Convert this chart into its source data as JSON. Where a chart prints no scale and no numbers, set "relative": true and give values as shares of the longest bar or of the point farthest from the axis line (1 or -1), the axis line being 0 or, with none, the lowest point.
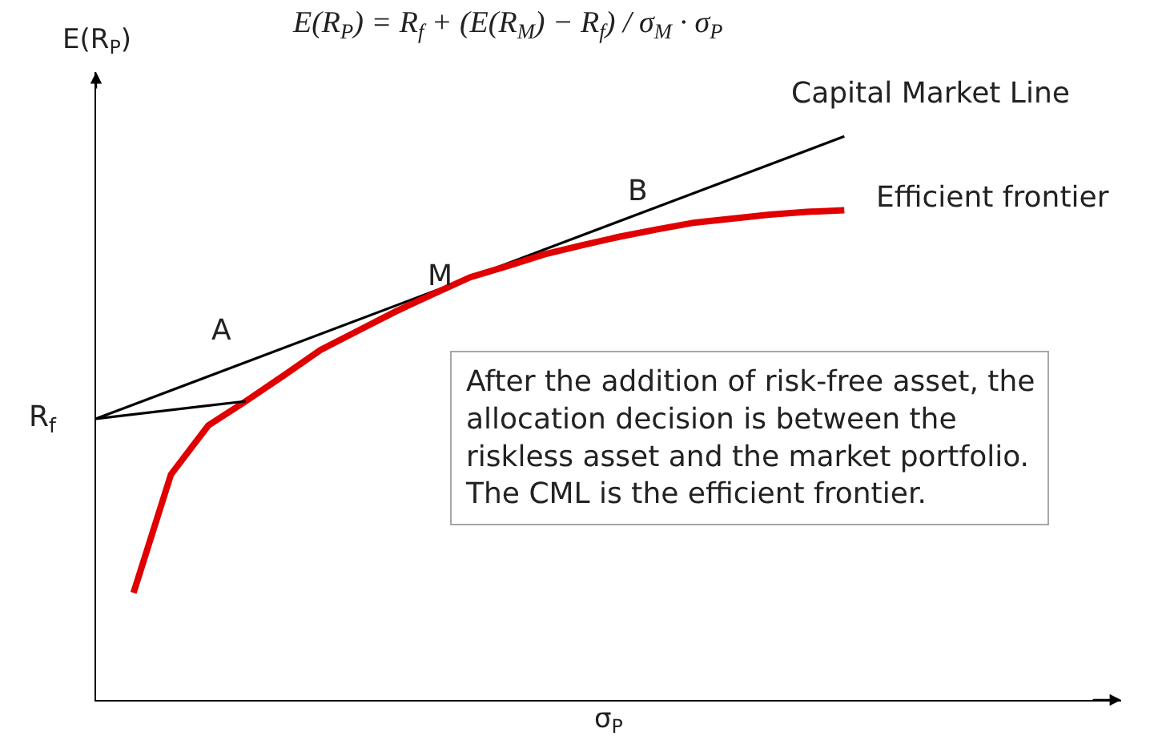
{
  "chart_data": {
    "type": "line",
    "relative": true,
    "xlabel": "σ$_{P}$",
    "ylabel": "E(R$_{P}$)",
    "legend": false,
    "grid": false,
    "marker": "none",
    "line_style": "solid",
    "categories": [
      null,
      null,
      null,
      null,
      null,
      null,
      null,
      null,
      null,
      null,
      null,
      null,
      null,
      null,
      null,
      null,
      null,
      null,
      null,
      null,
      null
    ],
    "series": [
      {
        "name": "Capital Market Line",
        "color": "#000000",
        "values": [
          0.499,
          null,
          null,
          null,
          null,
          null,
          null,
          null,
          null,
          null,
          null,
          null,
          null,
          null,
          null,
          null,
          null,
          null,
          null,
          null,
          1.0
        ]
      },
      {
        "name": "Efficient frontier",
        "color": "#e00000",
        "values": [
          null,
          0.19,
          0.4,
          0.487,
          0.53,
          0.575,
          0.621,
          0.655,
          0.689,
          0.72,
          0.75,
          0.77,
          0.791,
          0.807,
          0.822,
          0.835,
          0.847,
          0.854,
          0.861,
          0.866,
          0.869
        ]
      },
      {
        "color": "#000000",
        "values": [
          0.499,
          null,
          null,
          null,
          0.53,
          null,
          null,
          null,
          null,
          null,
          null,
          null,
          null,
          null,
          null,
          null,
          null,
          null,
          null,
          null,
          null
        ]
      }
    ],
    "annotations": [
      "R$_{f}$",
      "A",
      "M",
      "B",
      "E(R$_{P}$) = R$_{f}$ + (E(R$_{M}$) − R$_{f}$) / σ$_{M}$ · σ$_{P}$",
      "After the addition of risk-free asset, the\nallocation decision is between the\nriskless asset and the market portfolio.\nThe CML is the efficient frontier."
    ]
  }
}
